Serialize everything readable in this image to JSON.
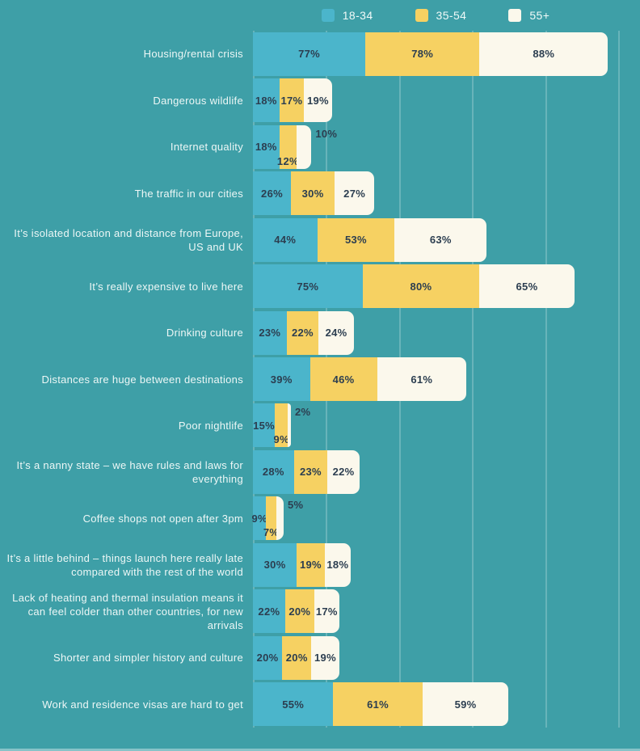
{
  "colors": {
    "background": "#3E9FA7",
    "grid": "rgba(255,255,255,0.22)",
    "value_text": "#2C3E50",
    "category_text": "#EDF7F6",
    "axis_text": "#E3F2F1"
  },
  "chart_data": {
    "type": "bar",
    "stacked": true,
    "orientation": "horizontal",
    "title": "",
    "value_suffix": "%",
    "grid": true,
    "legend_position": "top",
    "xlim": [
      0,
      250
    ],
    "x_ticks": [
      "0%",
      "50%",
      "100%",
      "150%",
      "200%",
      "250%"
    ],
    "categories": [
      "Housing/rental crisis",
      "Dangerous wildlife",
      "Internet quality",
      "The traffic in our cities",
      "It’s isolated location and distance from Europe, US and UK",
      "It’s really expensive to live here",
      "Drinking culture",
      "Distances are huge between destinations",
      "Poor nightlife",
      "It’s a nanny state – we have rules and laws for everything",
      "Coffee shops not open after 3pm",
      "It’s a little behind – things launch here really late compared with the rest of the world",
      "Lack of heating and thermal insulation means it can feel colder than other countries, for new arrivals",
      "Shorter and simpler history and culture",
      "Work and residence visas are hard to get"
    ],
    "series": [
      {
        "name": "18-34",
        "color": "#4BB5CB",
        "values": [
          77,
          18,
          18,
          26,
          44,
          75,
          23,
          39,
          15,
          28,
          9,
          30,
          22,
          20,
          55
        ]
      },
      {
        "name": "35-54",
        "color": "#F6D162",
        "values": [
          78,
          17,
          12,
          30,
          53,
          80,
          22,
          46,
          9,
          23,
          7,
          19,
          20,
          20,
          61
        ]
      },
      {
        "name": "55+",
        "color": "#FBF8EC",
        "values": [
          88,
          19,
          10,
          27,
          63,
          65,
          24,
          61,
          2,
          22,
          5,
          18,
          17,
          19,
          59
        ]
      }
    ]
  }
}
